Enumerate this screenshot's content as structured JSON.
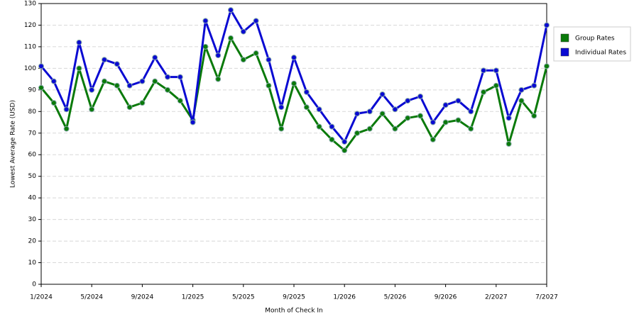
{
  "chart_data": {
    "type": "line",
    "x_label": "Month of Check In",
    "y_label": "Lowest Average Rate (USD)",
    "categories": [
      "1/2024",
      null,
      null,
      null,
      "5/2024",
      null,
      null,
      null,
      "9/2024",
      null,
      null,
      null,
      "1/2025",
      null,
      null,
      null,
      "5/2025",
      null,
      null,
      null,
      "9/2025",
      null,
      null,
      null,
      "1/2026",
      null,
      null,
      null,
      "5/2026",
      null,
      null,
      null,
      "9/2026",
      null,
      null,
      null,
      "2/2027",
      null,
      null,
      null,
      "7/2027"
    ],
    "series": [
      {
        "name": "Group Rates",
        "color": "#0a7a0a",
        "values": [
          91,
          84,
          72,
          100,
          81,
          94,
          92,
          82,
          84,
          94,
          90,
          85,
          76,
          110,
          95,
          114,
          104,
          107,
          92,
          72,
          93,
          82,
          73,
          67,
          62,
          70,
          72,
          79,
          72,
          77,
          78,
          67,
          75,
          76,
          72,
          89,
          92,
          65,
          85,
          78,
          101
        ]
      },
      {
        "name": "Individual Rates",
        "color": "#0a0ad2",
        "values": [
          101,
          94,
          81,
          112,
          90,
          104,
          102,
          92,
          94,
          105,
          96,
          96,
          75,
          122,
          106,
          127,
          117,
          122,
          104,
          82,
          105,
          89,
          81,
          73,
          66,
          79,
          80,
          88,
          81,
          85,
          87,
          75,
          83,
          85,
          80,
          99,
          99,
          77,
          90,
          92,
          120
        ]
      }
    ],
    "ylim": [
      0,
      130
    ],
    "yticks": [
      0,
      10,
      20,
      30,
      40,
      50,
      60,
      70,
      80,
      90,
      100,
      110,
      120,
      130
    ],
    "grid": true,
    "legend": "right"
  }
}
